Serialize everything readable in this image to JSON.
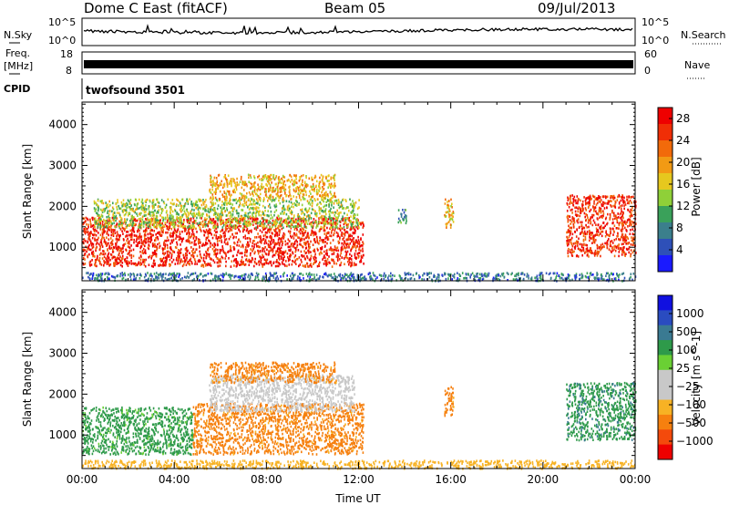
{
  "header": {
    "title": "Dome C East (fitACF)",
    "beam": "Beam 05",
    "date": "09/Jul/2013"
  },
  "top_panels": {
    "nsky_label": "N.Sky",
    "nsky_ticks": [
      "10^5",
      "10^0"
    ],
    "nsearch_label": "N.Search",
    "nsearch_ticks": [
      "10^5",
      "10^0"
    ],
    "freq_label": "Freq.",
    "freq_unit": "[MHz]",
    "freq_ticks": [
      "18",
      "8"
    ],
    "nave_label": "Nave",
    "nave_ticks": [
      "60",
      "0"
    ],
    "cpid_label": "CPID",
    "cpid_value": "twofsound 3501"
  },
  "colors": {
    "power_scale": [
      "#1a1aff",
      "#2e50b8",
      "#3b7f8c",
      "#3aa15a",
      "#8fd038",
      "#e6c81e",
      "#f29a14",
      "#f26a0a",
      "#f02e06",
      "#ee0000"
    ],
    "velocity_scale": [
      "#ee0000",
      "#f44a0c",
      "#f6800f",
      "#f7b224",
      "#c8c8c8",
      "#c8c8c8",
      "#6ad034",
      "#2e9a4a",
      "#3a7a92",
      "#2a4cc0",
      "#1010e0"
    ]
  },
  "chart_data": [
    {
      "type": "heatmap",
      "name": "power",
      "ylabel": "Slant Range [km]",
      "xlabel": "",
      "x_ticks": [],
      "y_ticks": [
        "1000",
        "2000",
        "3000",
        "4000"
      ],
      "xlim_hours": [
        0,
        24
      ],
      "ylim_km": [
        180,
        4550
      ],
      "colorbar_label": "Power [dB]",
      "colorbar_ticks": [
        "4",
        "8",
        "12",
        "16",
        "20",
        "24",
        "28"
      ],
      "colorbar_range": [
        0,
        30
      ],
      "echo_regions": [
        {
          "t0": 0.0,
          "t1": 12.2,
          "r0": 550,
          "r1": 1750,
          "value": 27
        },
        {
          "t0": 0.5,
          "t1": 12.0,
          "r0": 1500,
          "r1": 2200,
          "value": 14
        },
        {
          "t0": 5.5,
          "t1": 11.0,
          "r0": 2200,
          "r1": 2800,
          "value": 19
        },
        {
          "t0": 13.7,
          "t1": 14.1,
          "r0": 1600,
          "r1": 1950,
          "value": 8
        },
        {
          "t0": 15.7,
          "t1": 16.1,
          "r0": 1500,
          "r1": 2200,
          "value": 18
        },
        {
          "t0": 21.0,
          "t1": 24.0,
          "r0": 800,
          "r1": 2300,
          "value": 26
        },
        {
          "t0": 0.0,
          "t1": 24.0,
          "r0": 200,
          "r1": 400,
          "value": 7
        }
      ]
    },
    {
      "type": "heatmap",
      "name": "velocity",
      "ylabel": "Slant Range [km]",
      "xlabel": "Time UT",
      "x_ticks": [
        "00:00",
        "04:00",
        "08:00",
        "12:00",
        "16:00",
        "20:00",
        "00:00"
      ],
      "y_ticks": [
        "1000",
        "2000",
        "3000",
        "4000"
      ],
      "xlim_hours": [
        0,
        24
      ],
      "ylim_km": [
        180,
        4550
      ],
      "colorbar_label": "Velocity [m s^-1]",
      "colorbar_ticks": [
        "1000",
        "500",
        "100",
        "25",
        "−25",
        "−100",
        "−500",
        "−1000"
      ],
      "echo_regions": [
        {
          "t0": 0.0,
          "t1": 4.8,
          "r0": 550,
          "r1": 1700,
          "value": 150
        },
        {
          "t0": 4.8,
          "t1": 12.2,
          "r0": 550,
          "r1": 1800,
          "value": -150
        },
        {
          "t0": 5.5,
          "t1": 11.8,
          "r0": 1600,
          "r1": 2500,
          "value": 0
        },
        {
          "t0": 5.5,
          "t1": 11.0,
          "r0": 2300,
          "r1": 2800,
          "value": -150
        },
        {
          "t0": 15.7,
          "t1": 16.1,
          "r0": 1500,
          "r1": 2200,
          "value": -150
        },
        {
          "t0": 21.0,
          "t1": 24.0,
          "r0": 900,
          "r1": 2300,
          "value": 400
        },
        {
          "t0": 0.0,
          "t1": 24.0,
          "r0": 200,
          "r1": 400,
          "value": -50
        }
      ]
    }
  ]
}
